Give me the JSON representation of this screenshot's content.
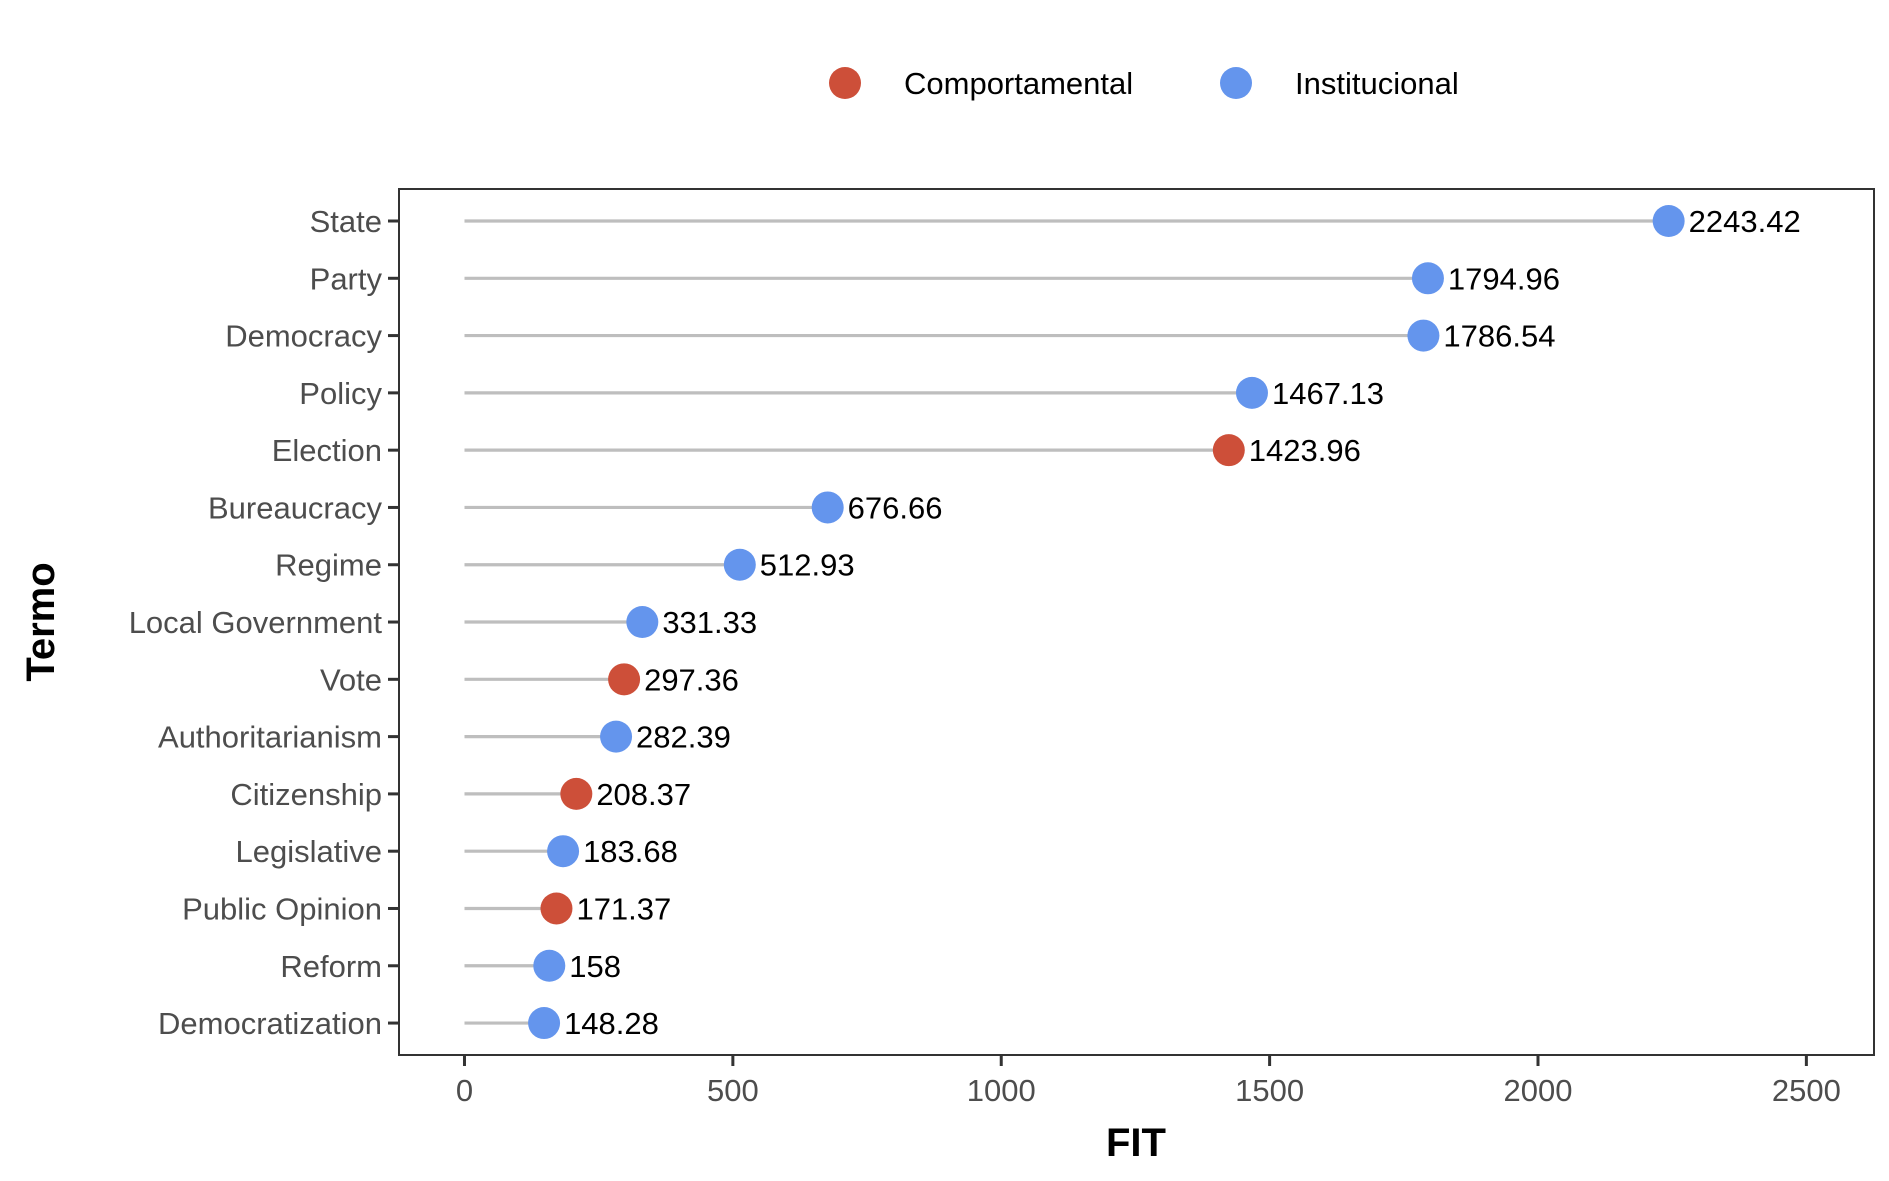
{
  "chart_data": {
    "type": "lollipop",
    "xlabel": "FIT",
    "ylabel": "Termo",
    "xlim": [
      -122,
      2626
    ],
    "xticks": [
      0,
      500,
      1000,
      1500,
      2000,
      2500
    ],
    "xtick_labels": [
      "0",
      "500",
      "1000",
      "1500",
      "2000",
      "2500"
    ],
    "grid": false,
    "legend_position": "top",
    "legend": [
      {
        "name": "Comportamental",
        "color": "#CD4F39"
      },
      {
        "name": "Institucional",
        "color": "#6495ED"
      }
    ],
    "stem_color": "#BEBEBE",
    "points": [
      {
        "term": "State",
        "value": 2243.42,
        "label": "2243.42",
        "group": "Institucional"
      },
      {
        "term": "Party",
        "value": 1794.96,
        "label": "1794.96",
        "group": "Institucional"
      },
      {
        "term": "Democracy",
        "value": 1786.54,
        "label": "1786.54",
        "group": "Institucional"
      },
      {
        "term": "Policy",
        "value": 1467.13,
        "label": "1467.13",
        "group": "Institucional"
      },
      {
        "term": "Election",
        "value": 1423.96,
        "label": "1423.96",
        "group": "Comportamental"
      },
      {
        "term": "Bureaucracy",
        "value": 676.66,
        "label": "676.66",
        "group": "Institucional"
      },
      {
        "term": "Regime",
        "value": 512.93,
        "label": "512.93",
        "group": "Institucional"
      },
      {
        "term": "Local Government",
        "value": 331.33,
        "label": "331.33",
        "group": "Institucional"
      },
      {
        "term": "Vote",
        "value": 297.36,
        "label": "297.36",
        "group": "Comportamental"
      },
      {
        "term": "Authoritarianism",
        "value": 282.39,
        "label": "282.39",
        "group": "Institucional"
      },
      {
        "term": "Citizenship",
        "value": 208.37,
        "label": "208.37",
        "group": "Comportamental"
      },
      {
        "term": "Legislative",
        "value": 183.68,
        "label": "183.68",
        "group": "Institucional"
      },
      {
        "term": "Public Opinion",
        "value": 171.37,
        "label": "171.37",
        "group": "Comportamental"
      },
      {
        "term": "Reform",
        "value": 158,
        "label": "158",
        "group": "Institucional"
      },
      {
        "term": "Democratization",
        "value": 148.28,
        "label": "148.28",
        "group": "Institucional"
      }
    ]
  }
}
